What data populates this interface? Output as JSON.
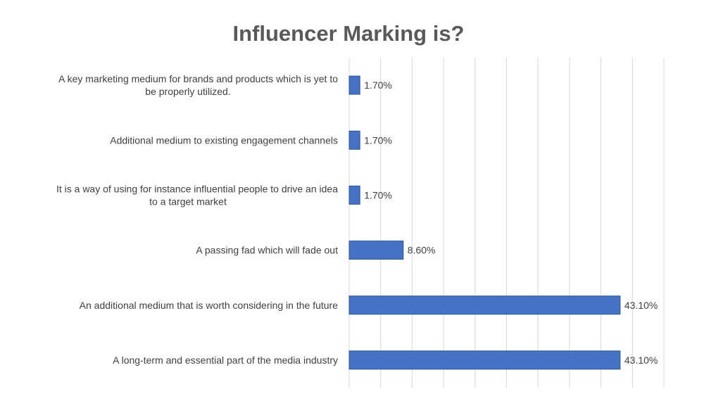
{
  "chart_data": {
    "type": "bar",
    "orientation": "horizontal",
    "title": "Influencer Marking is?",
    "categories": [
      [
        "A key marketing medium for brands and products which is yet to",
        "be properly utilized."
      ],
      [
        "Additional medium to existing engagement channels"
      ],
      [
        "It is a way of using for instance influential people to drive an idea",
        "to a target market"
      ],
      [
        "A passing fad which will fade out"
      ],
      [
        "An additional medium that is worth considering in the future"
      ],
      [
        "A long-term and essential part of the media industry"
      ]
    ],
    "values": [
      1.7,
      1.7,
      1.7,
      8.6,
      43.1,
      43.1
    ],
    "data_labels": [
      "1.70%",
      "1.70%",
      "1.70%",
      "8.60%",
      "43.10%",
      "43.10%"
    ],
    "xlim": [
      0,
      50
    ],
    "gridlines": true,
    "bar_color": "#4472C4",
    "gridline_color": "#D9D9D9",
    "text_color": "#404040"
  }
}
